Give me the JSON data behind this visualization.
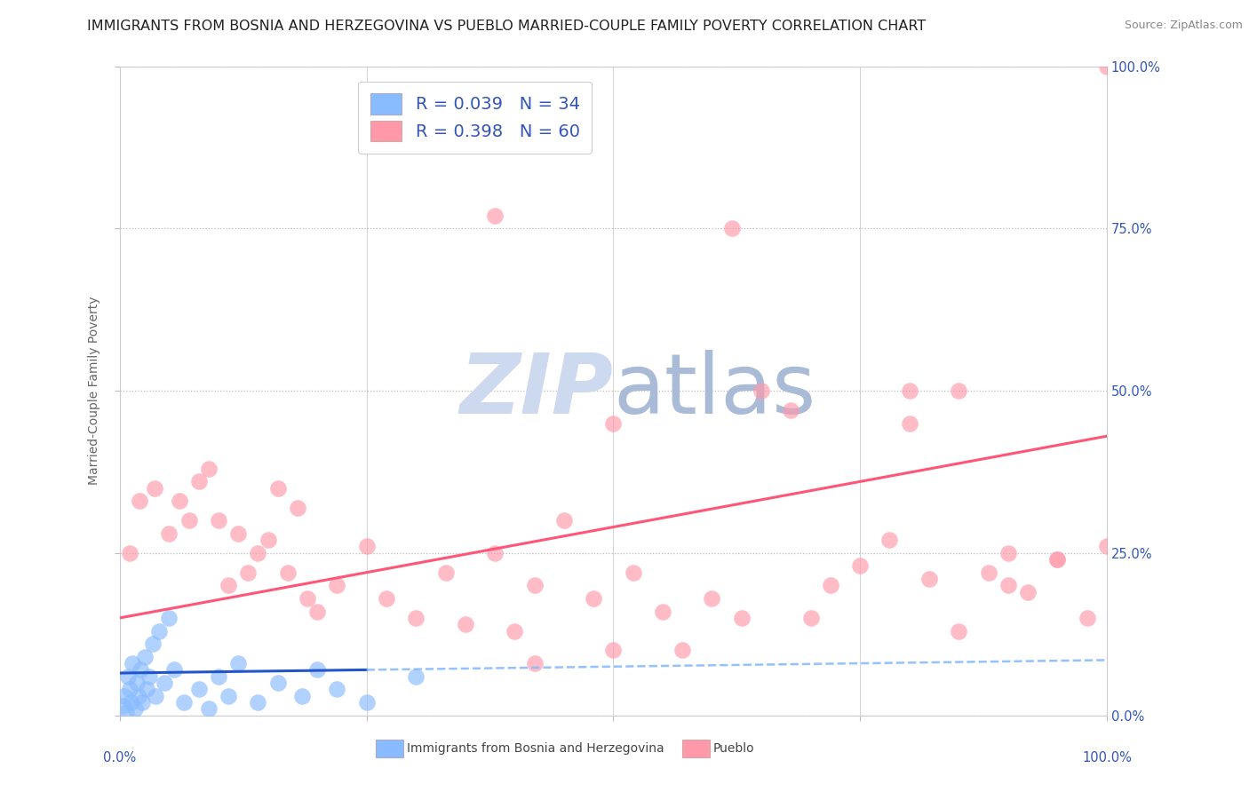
{
  "title": "IMMIGRANTS FROM BOSNIA AND HERZEGOVINA VS PUEBLO MARRIED-COUPLE FAMILY POVERTY CORRELATION CHART",
  "source": "Source: ZipAtlas.com",
  "ylabel": "Married-Couple Family Poverty",
  "legend_label_1": "Immigrants from Bosnia and Herzegovina",
  "legend_label_2": "Pueblo",
  "legend_R1": "R = 0.039",
  "legend_N1": "N = 34",
  "legend_R2": "R = 0.398",
  "legend_N2": "N = 60",
  "blue_scatter_x": [
    0.3,
    0.5,
    0.6,
    0.8,
    1.0,
    1.1,
    1.3,
    1.5,
    1.7,
    1.9,
    2.1,
    2.3,
    2.5,
    2.7,
    3.0,
    3.3,
    3.6,
    4.0,
    4.5,
    5.0,
    5.5,
    6.5,
    8.0,
    9.0,
    10.0,
    11.0,
    12.0,
    14.0,
    16.0,
    18.5,
    20.0,
    22.0,
    25.0,
    30.0
  ],
  "blue_scatter_y": [
    1.5,
    3.0,
    0.5,
    6.0,
    4.0,
    2.0,
    8.0,
    1.0,
    5.0,
    3.0,
    7.0,
    2.0,
    9.0,
    4.0,
    6.0,
    11.0,
    3.0,
    13.0,
    5.0,
    15.0,
    7.0,
    2.0,
    4.0,
    1.0,
    6.0,
    3.0,
    8.0,
    2.0,
    5.0,
    3.0,
    7.0,
    4.0,
    2.0,
    6.0
  ],
  "pink_scatter_x": [
    1.0,
    2.0,
    3.5,
    5.0,
    6.0,
    7.0,
    8.0,
    9.0,
    10.0,
    11.0,
    12.0,
    13.0,
    14.0,
    15.0,
    16.0,
    17.0,
    18.0,
    19.0,
    20.0,
    22.0,
    25.0,
    27.0,
    30.0,
    33.0,
    35.0,
    38.0,
    40.0,
    42.0,
    45.0,
    48.0,
    50.0,
    52.0,
    55.0,
    57.0,
    60.0,
    63.0,
    65.0,
    68.0,
    70.0,
    72.0,
    75.0,
    78.0,
    80.0,
    82.0,
    85.0,
    88.0,
    90.0,
    92.0,
    95.0,
    98.0,
    62.0,
    80.0,
    85.0,
    90.0,
    95.0,
    100.0,
    100.0,
    38.0,
    42.0,
    50.0
  ],
  "pink_scatter_y": [
    25.0,
    33.0,
    35.0,
    28.0,
    33.0,
    30.0,
    36.0,
    38.0,
    30.0,
    20.0,
    28.0,
    22.0,
    25.0,
    27.0,
    35.0,
    22.0,
    32.0,
    18.0,
    16.0,
    20.0,
    26.0,
    18.0,
    15.0,
    22.0,
    14.0,
    25.0,
    13.0,
    20.0,
    30.0,
    18.0,
    45.0,
    22.0,
    16.0,
    10.0,
    18.0,
    15.0,
    50.0,
    47.0,
    15.0,
    20.0,
    23.0,
    27.0,
    45.0,
    21.0,
    13.0,
    22.0,
    25.0,
    19.0,
    24.0,
    15.0,
    75.0,
    50.0,
    50.0,
    20.0,
    24.0,
    26.0,
    100.0,
    77.0,
    8.0,
    10.0
  ],
  "blue_line_x0": 0.0,
  "blue_line_x1": 100.0,
  "blue_line_y0": 6.5,
  "blue_line_y1": 8.5,
  "blue_line_solid_x1": 25.0,
  "pink_line_x0": 0.0,
  "pink_line_x1": 100.0,
  "pink_line_y0": 15.0,
  "pink_line_y1": 43.0,
  "xlim": [
    0,
    100
  ],
  "ylim": [
    0,
    100
  ],
  "background_color": "#ffffff",
  "scatter_blue_color": "#88bbff",
  "scatter_pink_color": "#ff99aa",
  "line_blue_solid_color": "#2255cc",
  "line_blue_dash_color": "#88bbff",
  "line_pink_color": "#ff5577",
  "axis_label_color": "#3355bb",
  "ylabel_color": "#666666",
  "title_color": "#222222",
  "title_fontsize": 11.5,
  "source_fontsize": 9,
  "watermark_color": "#ccd9ee",
  "tick_label_fontsize": 10.5
}
